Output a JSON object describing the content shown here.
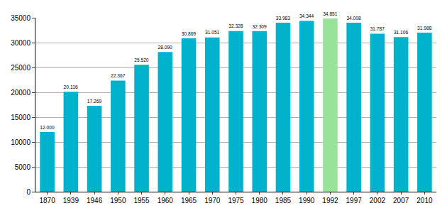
{
  "chart_data": {
    "type": "bar",
    "categories": [
      "1870",
      "1939",
      "1946",
      "1950",
      "1955",
      "1960",
      "1965",
      "1970",
      "1975",
      "1980",
      "1985",
      "1990",
      "1992",
      "1997",
      "2002",
      "2007",
      "2010"
    ],
    "values": [
      12000,
      20116,
      17269,
      22367,
      25520,
      28090,
      30869,
      31051,
      32328,
      32309,
      33983,
      34344,
      34851,
      34008,
      31787,
      31106,
      31988
    ],
    "value_labels": [
      "12.000",
      "20.116",
      "17.269",
      "22.367",
      "25.520",
      "28.090",
      "30.869",
      "31.051",
      "32.328",
      "32.309",
      "33.983",
      "34.344",
      "34.851",
      "34.008",
      "31.787",
      "31.106",
      "31.988"
    ],
    "colors": [
      "#00b2cc",
      "#00b2cc",
      "#00b2cc",
      "#00b2cc",
      "#00b2cc",
      "#00b2cc",
      "#00b2cc",
      "#00b2cc",
      "#00b2cc",
      "#00b2cc",
      "#00b2cc",
      "#00b2cc",
      "#98e29a",
      "#00b2cc",
      "#00b2cc",
      "#00b2cc",
      "#00b2cc"
    ],
    "ylim": [
      0,
      35000
    ],
    "yticks": [
      0,
      5000,
      10000,
      15000,
      20000,
      25000,
      30000,
      35000
    ],
    "grid": true,
    "data_labels": true
  }
}
